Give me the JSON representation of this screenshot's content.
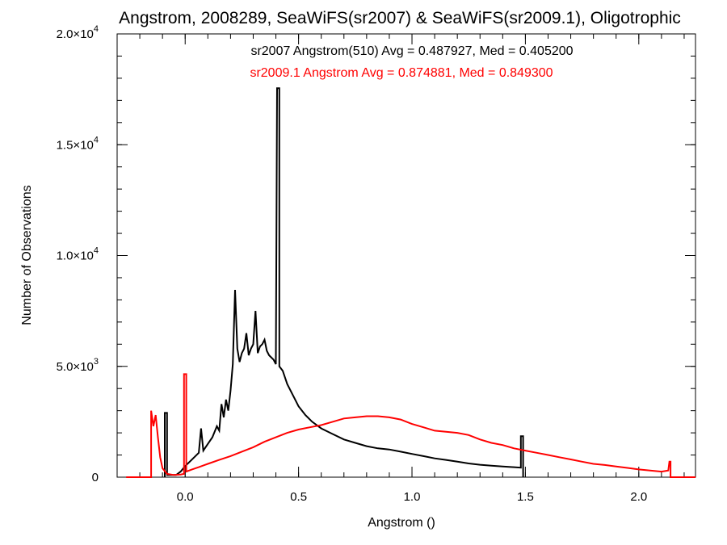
{
  "chart_data": {
    "type": "line",
    "title": "Angstrom, 2008289, SeaWiFS(sr2007) & SeaWiFS(sr2009.1), Oligotrophic",
    "xlabel": "Angstrom ()",
    "ylabel": "Number of Observations",
    "xlim": [
      -0.3,
      2.25
    ],
    "ylim": [
      0,
      20000
    ],
    "x_ticks": [
      {
        "value": 0.0,
        "label": "0.0"
      },
      {
        "value": 0.5,
        "label": "0.5"
      },
      {
        "value": 1.0,
        "label": "1.0"
      },
      {
        "value": 1.5,
        "label": "1.5"
      },
      {
        "value": 2.0,
        "label": "2.0"
      }
    ],
    "y_ticks": [
      {
        "value": 0,
        "label": "0",
        "exp": ""
      },
      {
        "value": 5000,
        "label": "5.0×10",
        "exp": "3"
      },
      {
        "value": 10000,
        "label": "1.0×10",
        "exp": "4"
      },
      {
        "value": 15000,
        "label": "1.5×10",
        "exp": "4"
      },
      {
        "value": 20000,
        "label": "2.0×10",
        "exp": "4"
      }
    ],
    "x_minor_step": 0.1,
    "y_minor_step": 1000,
    "grid": false,
    "series": [
      {
        "name": "sr2007 Angstrom(510)",
        "color": "#000000",
        "annotation": "sr2007 Angstrom(510) Avg = 0.487927, Med = 0.405200",
        "points": [
          [
            -0.09,
            0
          ],
          [
            -0.09,
            2900
          ],
          [
            -0.08,
            2900
          ],
          [
            -0.08,
            100
          ],
          [
            -0.04,
            100
          ],
          [
            -0.02,
            250
          ],
          [
            0.0,
            500
          ],
          [
            0.02,
            700
          ],
          [
            0.04,
            900
          ],
          [
            0.06,
            1100
          ],
          [
            0.07,
            2200
          ],
          [
            0.08,
            1200
          ],
          [
            0.1,
            1500
          ],
          [
            0.12,
            1800
          ],
          [
            0.14,
            2300
          ],
          [
            0.15,
            2100
          ],
          [
            0.16,
            3300
          ],
          [
            0.17,
            2700
          ],
          [
            0.18,
            3500
          ],
          [
            0.19,
            3000
          ],
          [
            0.2,
            3900
          ],
          [
            0.21,
            5100
          ],
          [
            0.22,
            8450
          ],
          [
            0.23,
            5800
          ],
          [
            0.24,
            5200
          ],
          [
            0.25,
            5600
          ],
          [
            0.26,
            5800
          ],
          [
            0.27,
            6500
          ],
          [
            0.28,
            5500
          ],
          [
            0.29,
            5800
          ],
          [
            0.3,
            6000
          ],
          [
            0.31,
            7500
          ],
          [
            0.32,
            5600
          ],
          [
            0.33,
            5900
          ],
          [
            0.34,
            6000
          ],
          [
            0.35,
            6200
          ],
          [
            0.36,
            5700
          ],
          [
            0.37,
            5500
          ],
          [
            0.39,
            5300
          ],
          [
            0.4,
            5100
          ],
          [
            0.405,
            17550
          ],
          [
            0.415,
            17550
          ],
          [
            0.415,
            5000
          ],
          [
            0.43,
            4800
          ],
          [
            0.45,
            4200
          ],
          [
            0.48,
            3600
          ],
          [
            0.5,
            3200
          ],
          [
            0.53,
            2800
          ],
          [
            0.56,
            2500
          ],
          [
            0.6,
            2200
          ],
          [
            0.65,
            1950
          ],
          [
            0.7,
            1700
          ],
          [
            0.75,
            1550
          ],
          [
            0.8,
            1400
          ],
          [
            0.85,
            1300
          ],
          [
            0.9,
            1250
          ],
          [
            0.95,
            1150
          ],
          [
            1.0,
            1050
          ],
          [
            1.05,
            950
          ],
          [
            1.1,
            850
          ],
          [
            1.15,
            780
          ],
          [
            1.2,
            700
          ],
          [
            1.25,
            620
          ],
          [
            1.3,
            560
          ],
          [
            1.35,
            520
          ],
          [
            1.4,
            480
          ],
          [
            1.45,
            450
          ],
          [
            1.48,
            430
          ],
          [
            1.48,
            1850
          ],
          [
            1.49,
            1850
          ],
          [
            1.49,
            0
          ]
        ]
      },
      {
        "name": "sr2009.1 Angstrom",
        "color": "#ff0000",
        "annotation": "sr2009.1 Angstrom Avg = 0.874881, Med = 0.849300",
        "points": [
          [
            -0.26,
            0
          ],
          [
            -0.15,
            0
          ],
          [
            -0.15,
            3000
          ],
          [
            -0.14,
            2300
          ],
          [
            -0.13,
            2800
          ],
          [
            -0.12,
            1800
          ],
          [
            -0.11,
            900
          ],
          [
            -0.1,
            400
          ],
          [
            -0.08,
            150
          ],
          [
            -0.05,
            100
          ],
          [
            -0.02,
            120
          ],
          [
            -0.005,
            150
          ],
          [
            -0.005,
            4650
          ],
          [
            0.005,
            4650
          ],
          [
            0.005,
            250
          ],
          [
            0.03,
            350
          ],
          [
            0.06,
            450
          ],
          [
            0.1,
            600
          ],
          [
            0.15,
            780
          ],
          [
            0.2,
            950
          ],
          [
            0.25,
            1150
          ],
          [
            0.3,
            1350
          ],
          [
            0.35,
            1600
          ],
          [
            0.4,
            1800
          ],
          [
            0.45,
            2000
          ],
          [
            0.5,
            2150
          ],
          [
            0.55,
            2250
          ],
          [
            0.6,
            2350
          ],
          [
            0.65,
            2500
          ],
          [
            0.7,
            2650
          ],
          [
            0.75,
            2700
          ],
          [
            0.8,
            2750
          ],
          [
            0.85,
            2750
          ],
          [
            0.9,
            2700
          ],
          [
            0.95,
            2600
          ],
          [
            1.0,
            2400
          ],
          [
            1.05,
            2250
          ],
          [
            1.1,
            2100
          ],
          [
            1.15,
            2050
          ],
          [
            1.2,
            2000
          ],
          [
            1.25,
            1900
          ],
          [
            1.3,
            1700
          ],
          [
            1.35,
            1550
          ],
          [
            1.4,
            1450
          ],
          [
            1.45,
            1300
          ],
          [
            1.5,
            1200
          ],
          [
            1.55,
            1100
          ],
          [
            1.6,
            1000
          ],
          [
            1.65,
            900
          ],
          [
            1.7,
            800
          ],
          [
            1.75,
            700
          ],
          [
            1.8,
            600
          ],
          [
            1.85,
            550
          ],
          [
            1.9,
            480
          ],
          [
            1.95,
            420
          ],
          [
            2.0,
            350
          ],
          [
            2.05,
            300
          ],
          [
            2.1,
            250
          ],
          [
            2.13,
            300
          ],
          [
            2.135,
            700
          ],
          [
            2.14,
            700
          ],
          [
            2.14,
            0
          ],
          [
            2.25,
            0
          ]
        ]
      }
    ]
  }
}
